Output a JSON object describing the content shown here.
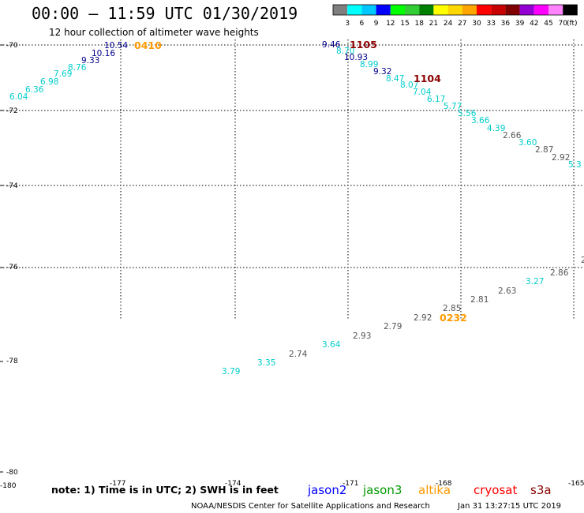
{
  "header": {
    "title": "00:00 — 11:59 UTC 01/30/2019",
    "subtitle": "12 hour collection of altimeter wave heights"
  },
  "legend": {
    "unit": "(ft)",
    "colors": [
      "#7f7f7f",
      "#00ffff",
      "#00c8ff",
      "#0000ff",
      "#00ff00",
      "#32cd32",
      "#008000",
      "#ffff00",
      "#ffd700",
      "#ffa500",
      "#ff0000",
      "#c80000",
      "#800000",
      "#9400d3",
      "#ff00ff",
      "#ff82ff",
      "#000000"
    ],
    "labels": [
      "3",
      "6",
      "9",
      "12",
      "15",
      "18",
      "21",
      "24",
      "27",
      "30",
      "33",
      "36",
      "39",
      "42",
      "45",
      "70"
    ]
  },
  "map": {
    "lat_labels": [
      "-70",
      "-72",
      "-74",
      "-76",
      "-78",
      "-80"
    ],
    "lon_labels": [
      "-180",
      "-177",
      "-174",
      "-171",
      "-168",
      "-165"
    ],
    "grid_lines": true
  },
  "colors": {
    "cyan": "#00cccc",
    "blue": "#00008b",
    "grey": "#555555",
    "orange": "#ff9900",
    "darkred": "#8b0000"
  },
  "tracks": [
    {
      "points": [
        {
          "value": "6.04",
          "color": "cyan"
        },
        {
          "value": "6.36",
          "color": "cyan"
        },
        {
          "value": "6.98",
          "color": "cyan"
        },
        {
          "value": "7.69",
          "color": "cyan"
        },
        {
          "value": "8.76",
          "color": "cyan"
        },
        {
          "value": "9.33",
          "color": "blue"
        },
        {
          "value": "10.16",
          "color": "blue"
        },
        {
          "value": "10.54",
          "color": "blue"
        }
      ]
    },
    {
      "points": [
        {
          "value": "9.46",
          "color": "blue"
        },
        {
          "value": "8.70",
          "color": "cyan"
        },
        {
          "value": "10.93",
          "color": "blue"
        },
        {
          "value": "8.99",
          "color": "cyan"
        },
        {
          "value": "9.32",
          "color": "blue"
        },
        {
          "value": "8.47",
          "color": "cyan"
        },
        {
          "value": "8.07",
          "color": "cyan"
        },
        {
          "value": "7.04",
          "color": "cyan"
        },
        {
          "value": "6.17",
          "color": "cyan"
        },
        {
          "value": "5.77",
          "color": "cyan"
        },
        {
          "value": "5.56",
          "color": "cyan"
        },
        {
          "value": "3.66",
          "color": "cyan"
        },
        {
          "value": "4.39",
          "color": "cyan"
        },
        {
          "value": "2.66",
          "color": "grey"
        },
        {
          "value": "3.60",
          "color": "cyan"
        },
        {
          "value": "2.87",
          "color": "grey"
        },
        {
          "value": "2.92",
          "color": "grey"
        },
        {
          "value": "5.3",
          "color": "cyan"
        }
      ]
    },
    {
      "points": [
        {
          "value": "3.79",
          "color": "cyan"
        },
        {
          "value": "3.35",
          "color": "cyan"
        },
        {
          "value": "2.74",
          "color": "grey"
        },
        {
          "value": "3.64",
          "color": "cyan"
        },
        {
          "value": "2.93",
          "color": "grey"
        },
        {
          "value": "2.79",
          "color": "grey"
        },
        {
          "value": "2.92",
          "color": "grey"
        },
        {
          "value": "2.85",
          "color": "grey"
        },
        {
          "value": "2.81",
          "color": "grey"
        },
        {
          "value": "2.63",
          "color": "grey"
        },
        {
          "value": "3.27",
          "color": "cyan"
        },
        {
          "value": "2.86",
          "color": "grey"
        },
        {
          "value": "2",
          "color": "grey"
        }
      ]
    }
  ],
  "times": [
    {
      "value": "0410",
      "color": "orange"
    },
    {
      "value": "1105",
      "color": "darkred"
    },
    {
      "value": "1104",
      "color": "darkred"
    },
    {
      "value": "0232",
      "color": "orange"
    }
  ],
  "footer": {
    "note": "note:  1) Time is in UTC;  2) SWH is in feet",
    "satellites": [
      {
        "name": "jason2",
        "color": "#0000ff"
      },
      {
        "name": "jason3",
        "color": "#009900"
      },
      {
        "name": "altika",
        "color": "#ff9900"
      },
      {
        "name": "cryosat",
        "color": "#ff0000"
      },
      {
        "name": "s3a",
        "color": "#8b0000"
      }
    ],
    "credit": "NOAA/NESDIS Center for Satellite Applications and Research",
    "timestamp": "Jan 31 13:27:15 UTC 2019"
  }
}
